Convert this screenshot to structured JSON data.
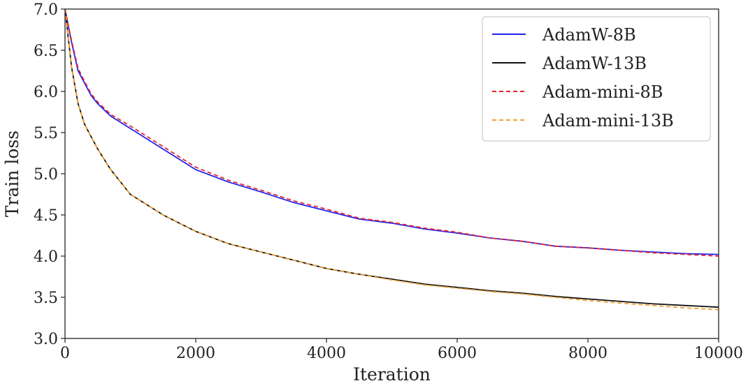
{
  "chart_data": {
    "type": "line",
    "xlabel": "Iteration",
    "ylabel": "Train loss",
    "xlim": [
      0,
      10000
    ],
    "ylim": [
      3.0,
      7.0
    ],
    "x_ticks": [
      "0",
      "2000",
      "4000",
      "6000",
      "8000",
      "10000"
    ],
    "y_ticks": [
      "3.0",
      "3.5",
      "4.0",
      "4.5",
      "5.0",
      "5.5",
      "6.0",
      "6.5",
      "7.0"
    ],
    "grid": false,
    "legend_position": "top-right",
    "x": [
      0,
      100,
      200,
      300,
      400,
      500,
      700,
      1000,
      1500,
      2000,
      2500,
      3000,
      3500,
      4000,
      4500,
      5000,
      5500,
      6000,
      6500,
      7000,
      7500,
      8000,
      8500,
      9000,
      9500,
      10000
    ],
    "series": [
      {
        "name": "AdamW-8B",
        "color": "#2222ee",
        "style": "solid",
        "values": [
          7.0,
          6.6,
          6.25,
          6.1,
          5.95,
          5.85,
          5.7,
          5.55,
          5.3,
          5.05,
          4.9,
          4.78,
          4.65,
          4.55,
          4.45,
          4.4,
          4.33,
          4.28,
          4.22,
          4.18,
          4.12,
          4.1,
          4.07,
          4.05,
          4.03,
          4.02
        ]
      },
      {
        "name": "AdamW-13B",
        "color": "#111111",
        "style": "solid",
        "values": [
          7.0,
          6.3,
          5.85,
          5.6,
          5.45,
          5.3,
          5.05,
          4.75,
          4.5,
          4.3,
          4.15,
          4.05,
          3.95,
          3.85,
          3.78,
          3.72,
          3.66,
          3.62,
          3.58,
          3.55,
          3.51,
          3.48,
          3.45,
          3.42,
          3.4,
          3.38
        ]
      },
      {
        "name": "Adam-mini-8B",
        "color": "#e8232e",
        "style": "dashed",
        "values": [
          7.0,
          6.62,
          6.28,
          6.12,
          5.97,
          5.87,
          5.72,
          5.58,
          5.33,
          5.08,
          4.92,
          4.8,
          4.67,
          4.57,
          4.46,
          4.41,
          4.34,
          4.29,
          4.22,
          4.18,
          4.12,
          4.1,
          4.07,
          4.04,
          4.02,
          4.0
        ]
      },
      {
        "name": "Adam-mini-13B",
        "color": "#f0a030",
        "style": "dashed",
        "values": [
          7.0,
          6.3,
          5.85,
          5.6,
          5.45,
          5.3,
          5.05,
          4.75,
          4.5,
          4.3,
          4.15,
          4.05,
          3.95,
          3.85,
          3.78,
          3.71,
          3.65,
          3.61,
          3.57,
          3.54,
          3.5,
          3.46,
          3.43,
          3.4,
          3.37,
          3.35
        ]
      }
    ]
  }
}
